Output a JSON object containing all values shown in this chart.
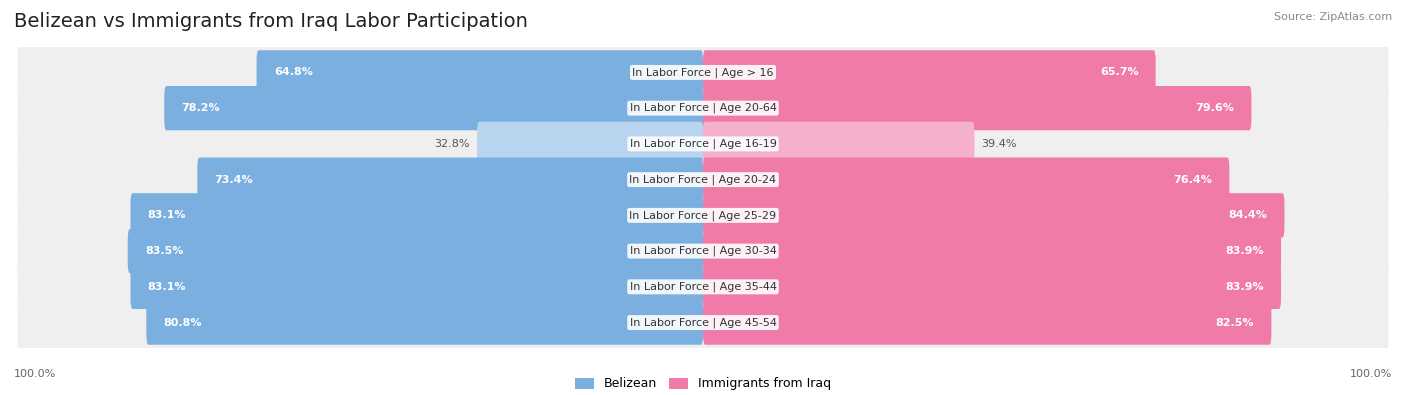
{
  "title": "Belizean vs Immigrants from Iraq Labor Participation",
  "source": "Source: ZipAtlas.com",
  "categories": [
    "In Labor Force | Age > 16",
    "In Labor Force | Age 20-64",
    "In Labor Force | Age 16-19",
    "In Labor Force | Age 20-24",
    "In Labor Force | Age 25-29",
    "In Labor Force | Age 30-34",
    "In Labor Force | Age 35-44",
    "In Labor Force | Age 45-54"
  ],
  "belizean": [
    64.8,
    78.2,
    32.8,
    73.4,
    83.1,
    83.5,
    83.1,
    80.8
  ],
  "iraq": [
    65.7,
    79.6,
    39.4,
    76.4,
    84.4,
    83.9,
    83.9,
    82.5
  ],
  "belizean_color": "#7aafe0",
  "iraq_color": "#f07aa8",
  "belizean_color_light": "#b8d4ee",
  "iraq_color_light": "#f5b0cc",
  "background_color": "#ffffff",
  "row_bg": "#efefef",
  "title_fontsize": 14,
  "label_fontsize": 8.0,
  "value_fontsize": 8.0,
  "legend_fontsize": 9,
  "max_val": 100.0
}
